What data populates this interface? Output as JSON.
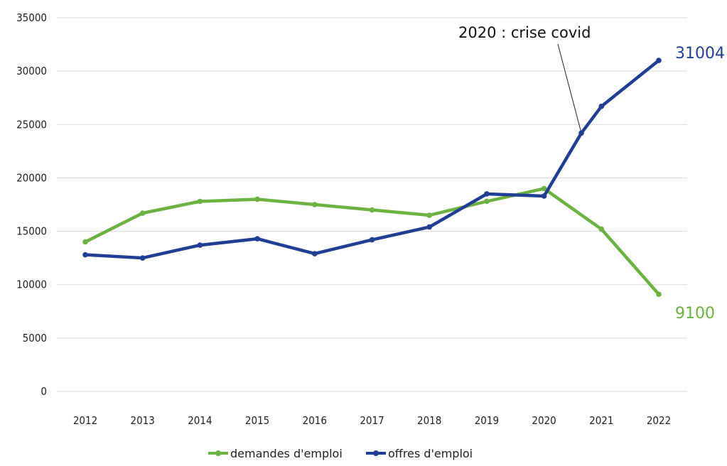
{
  "chart_data": {
    "type": "line",
    "categories": [
      "2012",
      "2013",
      "2014",
      "2015",
      "2016",
      "2017",
      "2018",
      "2019",
      "2020",
      "2021",
      "2022"
    ],
    "series": [
      {
        "name": "demandes d'emploi",
        "color": "#6ab33e",
        "points": [
          {
            "x": 2012,
            "y": 14000
          },
          {
            "x": 2013,
            "y": 16700
          },
          {
            "x": 2014,
            "y": 17800
          },
          {
            "x": 2015,
            "y": 18000
          },
          {
            "x": 2016,
            "y": 17500
          },
          {
            "x": 2017,
            "y": 17000
          },
          {
            "x": 2018,
            "y": 16500
          },
          {
            "x": 2019,
            "y": 17800
          },
          {
            "x": 2020,
            "y": 19000
          },
          {
            "x": 2021,
            "y": 15200
          },
          {
            "x": 2022,
            "y": 9100
          }
        ],
        "end_label": "9100"
      },
      {
        "name": "offres d'emploi",
        "color": "#1f3e96",
        "points": [
          {
            "x": 2012,
            "y": 12800
          },
          {
            "x": 2013,
            "y": 12500
          },
          {
            "x": 2014,
            "y": 13700
          },
          {
            "x": 2015,
            "y": 14300
          },
          {
            "x": 2016,
            "y": 12900
          },
          {
            "x": 2017,
            "y": 14200
          },
          {
            "x": 2018,
            "y": 15400
          },
          {
            "x": 2019,
            "y": 18500
          },
          {
            "x": 2020,
            "y": 18300
          },
          {
            "x": 2020.65,
            "y": 24200
          },
          {
            "x": 2021,
            "y": 26700
          },
          {
            "x": 2022,
            "y": 31004
          }
        ],
        "end_label": "31004"
      }
    ],
    "yticks": [
      "0",
      "5000",
      "10000",
      "15000",
      "20000",
      "25000",
      "30000",
      "35000"
    ],
    "ylim": [
      0,
      35000
    ],
    "xlim": [
      2012,
      2022
    ],
    "grid": true,
    "legend_position": "bottom",
    "annotation": {
      "text": "2020 : crise covid",
      "x": 2020.65,
      "y": 24200
    }
  }
}
